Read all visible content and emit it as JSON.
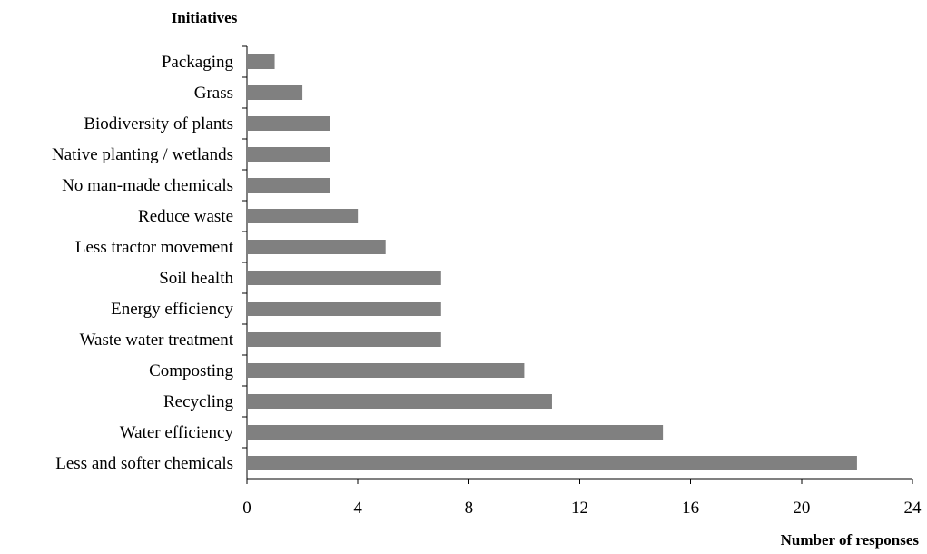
{
  "chart_data": {
    "type": "bar",
    "orientation": "horizontal",
    "ylabel": "Initiatives",
    "xlabel": "Number of responses",
    "categories": [
      "Packaging",
      "Grass",
      "Biodiversity of plants",
      "Native planting / wetlands",
      "No man-made chemicals",
      "Reduce waste",
      "Less tractor movement",
      "Soil health",
      "Energy efficiency",
      "Waste water treatment",
      "Composting",
      "Recycling",
      "Water efficiency",
      "Less and softer chemicals"
    ],
    "values": [
      1,
      2,
      3,
      3,
      3,
      4,
      5,
      7,
      7,
      7,
      10,
      11,
      15,
      22
    ],
    "xlim": [
      0,
      24
    ],
    "xticks": [
      0,
      4,
      8,
      12,
      16,
      20,
      24
    ],
    "grid": false,
    "legend": "none",
    "bar_color": "#808080"
  }
}
